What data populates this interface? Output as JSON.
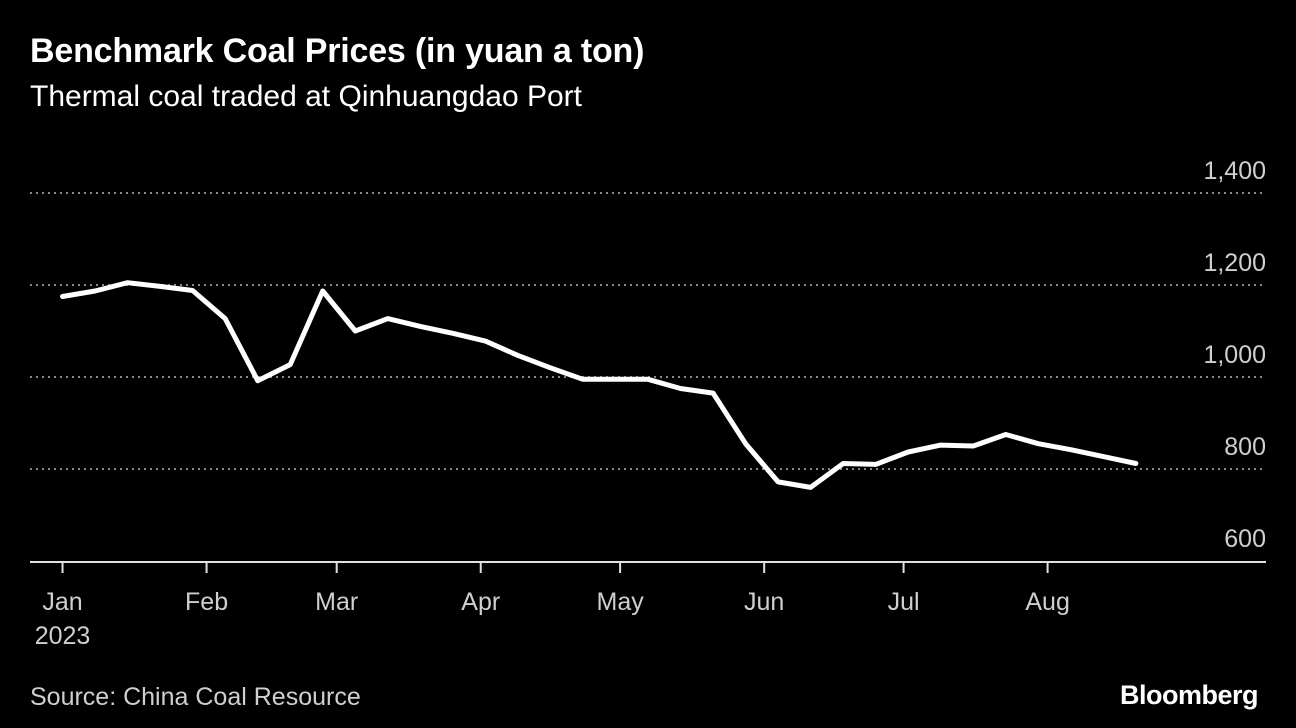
{
  "header": {
    "title": "Benchmark Coal Prices (in yuan a ton)",
    "subtitle": "Thermal coal traded at Qinhuangdao Port"
  },
  "footer": {
    "source": "Source: China Coal Resource",
    "brand": "Bloomberg"
  },
  "colors": {
    "background": "#000000",
    "line": "#ffffff",
    "grid": "#8a8a8a",
    "text": "#ffffff"
  },
  "chart_data": {
    "type": "line",
    "title": "Benchmark Coal Prices (in yuan a ton)",
    "subtitle": "Thermal coal traded at Qinhuangdao Port",
    "xlabel": "",
    "ylabel": "",
    "ylim": [
      600,
      1400
    ],
    "yticks": [
      600,
      800,
      1000,
      1200,
      1400
    ],
    "ytick_labels": [
      "600",
      "800",
      "1,000",
      "1,200",
      "1,400"
    ],
    "xlim": [
      "2022-12-25",
      "2023-09-17"
    ],
    "xticks": [
      "2023-01-01",
      "2023-02-01",
      "2023-03-01",
      "2023-04-01",
      "2023-05-01",
      "2023-06-01",
      "2023-07-01",
      "2023-08-01"
    ],
    "xtick_labels": [
      "Jan",
      "Feb",
      "Mar",
      "Apr",
      "May",
      "Jun",
      "Jul",
      "Aug"
    ],
    "xtick_sublabels": [
      "2023",
      "",
      "",
      "",
      "",
      "",
      "",
      ""
    ],
    "grid": "horizontal dotted",
    "y_axis_side": "right",
    "series": [
      {
        "values": [
          {
            "x": "2023-01-01",
            "y": 1175
          },
          {
            "x": "2023-01-08",
            "y": 1187
          },
          {
            "x": "2023-01-15",
            "y": 1205
          },
          {
            "x": "2023-01-22",
            "y": 1197
          },
          {
            "x": "2023-01-29",
            "y": 1188
          },
          {
            "x": "2023-02-05",
            "y": 1127
          },
          {
            "x": "2023-02-12",
            "y": 992
          },
          {
            "x": "2023-02-19",
            "y": 1027
          },
          {
            "x": "2023-02-26",
            "y": 1187
          },
          {
            "x": "2023-03-05",
            "y": 1100
          },
          {
            "x": "2023-03-12",
            "y": 1127
          },
          {
            "x": "2023-03-19",
            "y": 1110
          },
          {
            "x": "2023-03-26",
            "y": 1095
          },
          {
            "x": "2023-04-02",
            "y": 1078
          },
          {
            "x": "2023-04-09",
            "y": 1047
          },
          {
            "x": "2023-04-16",
            "y": 1020
          },
          {
            "x": "2023-04-23",
            "y": 995
          },
          {
            "x": "2023-04-30",
            "y": 995
          },
          {
            "x": "2023-05-07",
            "y": 995
          },
          {
            "x": "2023-05-14",
            "y": 975
          },
          {
            "x": "2023-05-21",
            "y": 965
          },
          {
            "x": "2023-05-28",
            "y": 855
          },
          {
            "x": "2023-06-04",
            "y": 772
          },
          {
            "x": "2023-06-11",
            "y": 760
          },
          {
            "x": "2023-06-18",
            "y": 812
          },
          {
            "x": "2023-06-25",
            "y": 810
          },
          {
            "x": "2023-07-02",
            "y": 837
          },
          {
            "x": "2023-07-09",
            "y": 852
          },
          {
            "x": "2023-07-16",
            "y": 850
          },
          {
            "x": "2023-07-23",
            "y": 875
          },
          {
            "x": "2023-07-30",
            "y": 855
          },
          {
            "x": "2023-08-06",
            "y": 842
          },
          {
            "x": "2023-08-13",
            "y": 827
          },
          {
            "x": "2023-08-20",
            "y": 812
          }
        ]
      }
    ]
  }
}
